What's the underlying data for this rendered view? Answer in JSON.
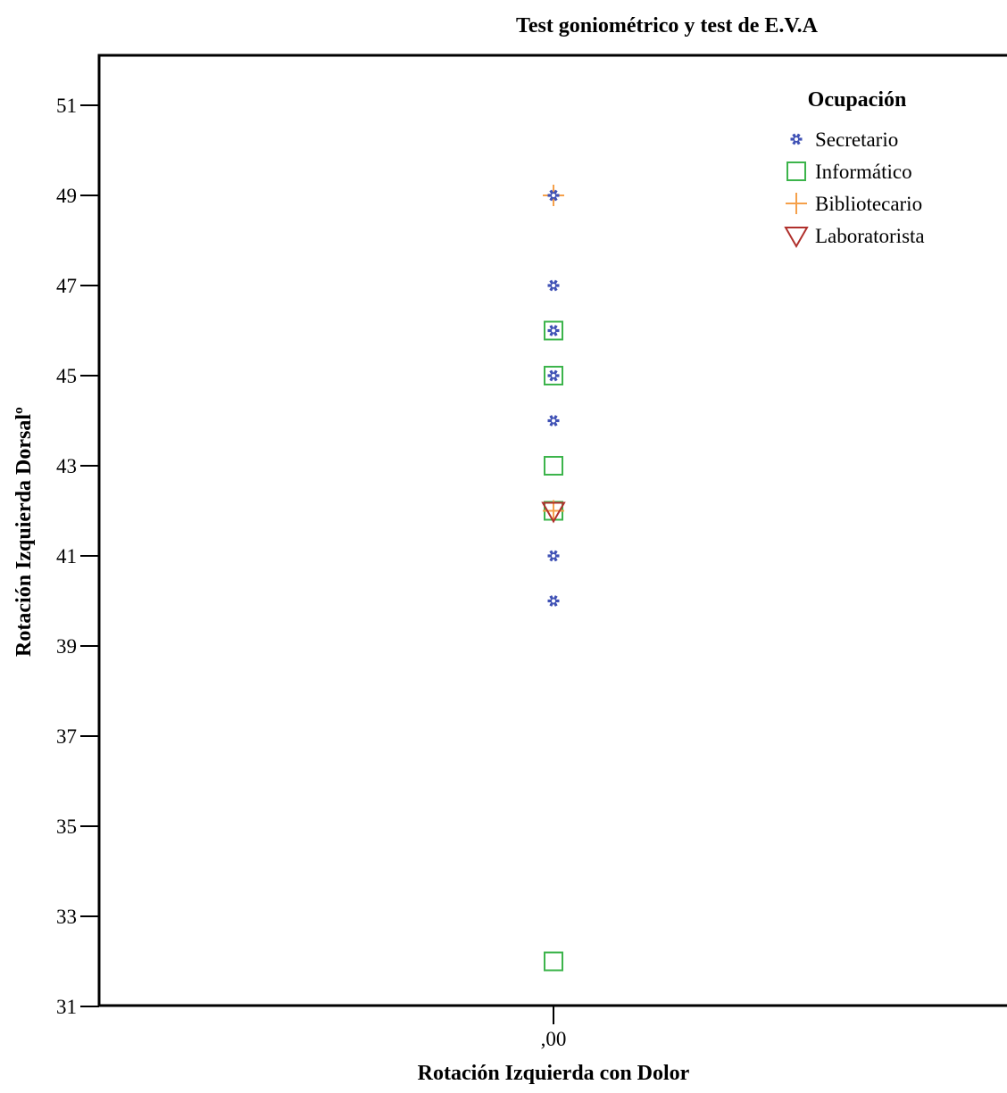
{
  "chart_data": {
    "type": "scatter",
    "title": "Test goniométrico y test de E.V.A",
    "xlabel": "Rotación Izquierda con Dolor",
    "ylabel": "Rotación Izquierda Dorsalº",
    "x_categories": [
      ",00"
    ],
    "ylim": [
      31,
      52
    ],
    "yticks": [
      "31",
      "33",
      "35",
      "37",
      "39",
      "41",
      "43",
      "45",
      "47",
      "49",
      "51"
    ],
    "legend": {
      "title": "Ocupación",
      "position": "top-right"
    },
    "series": [
      {
        "name": "Secretario",
        "marker": "star",
        "color": "#3f51b5",
        "points": [
          {
            "x": 0,
            "y": 49
          },
          {
            "x": 0,
            "y": 47
          },
          {
            "x": 0,
            "y": 46
          },
          {
            "x": 0,
            "y": 45
          },
          {
            "x": 0,
            "y": 44
          },
          {
            "x": 0,
            "y": 41
          },
          {
            "x": 0,
            "y": 40
          }
        ]
      },
      {
        "name": "Informático",
        "marker": "square",
        "color": "#3cb44b",
        "points": [
          {
            "x": 0,
            "y": 46
          },
          {
            "x": 0,
            "y": 45
          },
          {
            "x": 0,
            "y": 43
          },
          {
            "x": 0,
            "y": 42
          },
          {
            "x": 0,
            "y": 32
          }
        ]
      },
      {
        "name": "Bibliotecario",
        "marker": "plus",
        "color": "#f5a04a",
        "points": [
          {
            "x": 0,
            "y": 49
          },
          {
            "x": 0,
            "y": 42
          }
        ]
      },
      {
        "name": "Laboratorista",
        "marker": "triangle-down",
        "color": "#b0302c",
        "points": [
          {
            "x": 0,
            "y": 42
          }
        ]
      }
    ]
  }
}
